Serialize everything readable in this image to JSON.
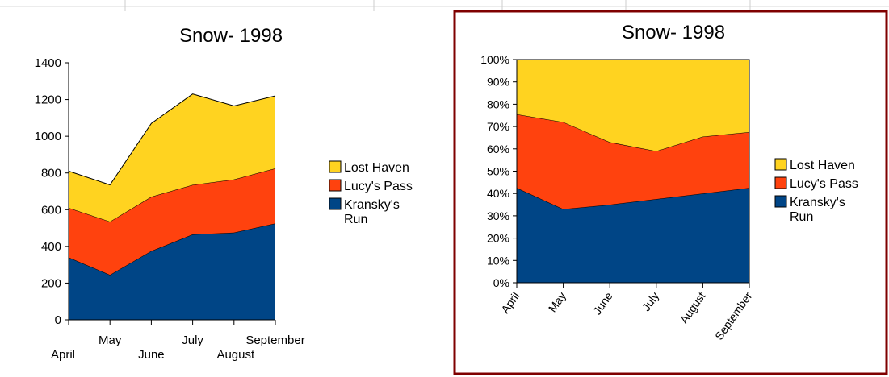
{
  "chart_data": [
    {
      "type": "area",
      "stacked": true,
      "title": "Snow- 1998",
      "categories": [
        "April",
        "May",
        "June",
        "July",
        "August",
        "September"
      ],
      "series": [
        {
          "name": "Kransky's Run",
          "values": [
            340,
            245,
            375,
            465,
            475,
            525
          ]
        },
        {
          "name": "Lucy's Pass",
          "values": [
            270,
            290,
            295,
            270,
            290,
            300
          ]
        },
        {
          "name": "Lost Haven",
          "values": [
            200,
            200,
            400,
            495,
            400,
            395
          ]
        }
      ],
      "ylim": [
        0,
        1400
      ],
      "yticks": [
        0,
        200,
        400,
        600,
        800,
        1000,
        1200,
        1400
      ],
      "grid": false,
      "legend": "right"
    },
    {
      "type": "area",
      "stacked": true,
      "percent": true,
      "selected": true,
      "title": "Snow- 1998",
      "categories": [
        "April",
        "May",
        "June",
        "July",
        "August",
        "September"
      ],
      "series": [
        {
          "name": "Kransky's Run",
          "values": [
            42.5,
            33,
            35,
            37.5,
            40,
            42.5
          ]
        },
        {
          "name": "Lucy's Pass",
          "values": [
            33,
            39,
            28,
            21.5,
            25.5,
            25
          ]
        },
        {
          "name": "Lost Haven",
          "values": [
            24.5,
            28,
            37,
            41,
            34.5,
            32.5
          ]
        }
      ],
      "ylim": [
        0,
        100
      ],
      "yticks": [
        "0%",
        "10%",
        "20%",
        "30%",
        "40%",
        "50%",
        "60%",
        "70%",
        "80%",
        "90%",
        "100%"
      ],
      "grid": false,
      "legend": "right"
    }
  ],
  "colors": {
    "Kransky's Run": "#004586",
    "Lucy's Pass": "#ff420e",
    "Lost Haven": "#ffd320",
    "selection_border": "#7f0000"
  }
}
